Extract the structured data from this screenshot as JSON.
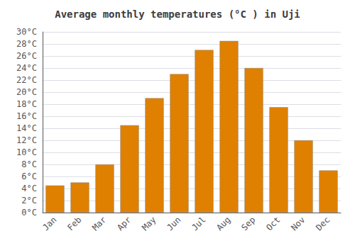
{
  "chart_data": {
    "type": "bar",
    "title": "Average monthly temperatures (°C ) in Uji",
    "categories": [
      "Jan",
      "Feb",
      "Mar",
      "Apr",
      "May",
      "Jun",
      "Jul",
      "Aug",
      "Sep",
      "Oct",
      "Nov",
      "Dec"
    ],
    "values": [
      4.5,
      5.0,
      8.0,
      14.5,
      19.0,
      23.0,
      27.0,
      28.5,
      24.0,
      17.5,
      12.0,
      7.0
    ],
    "color": "#E08000",
    "ylim": [
      0,
      30
    ],
    "yticks": [
      {
        "value": 0,
        "label": "0°C"
      },
      {
        "value": 2,
        "label": "2°C"
      },
      {
        "value": 4,
        "label": "4°C"
      },
      {
        "value": 6,
        "label": "6°C"
      },
      {
        "value": 8,
        "label": "8°C"
      },
      {
        "value": 10,
        "label": "10°C"
      },
      {
        "value": 12,
        "label": "12°C"
      },
      {
        "value": 14,
        "label": "14°C"
      },
      {
        "value": 16,
        "label": "16°C"
      },
      {
        "value": 18,
        "label": "18°C"
      },
      {
        "value": 20,
        "label": "20°C"
      },
      {
        "value": 22,
        "label": "22°C"
      },
      {
        "value": 24,
        "label": "24°C"
      },
      {
        "value": 26,
        "label": "26°C"
      },
      {
        "value": 28,
        "label": "28°C"
      },
      {
        "value": 30,
        "label": "30°C"
      }
    ],
    "grid": true
  }
}
